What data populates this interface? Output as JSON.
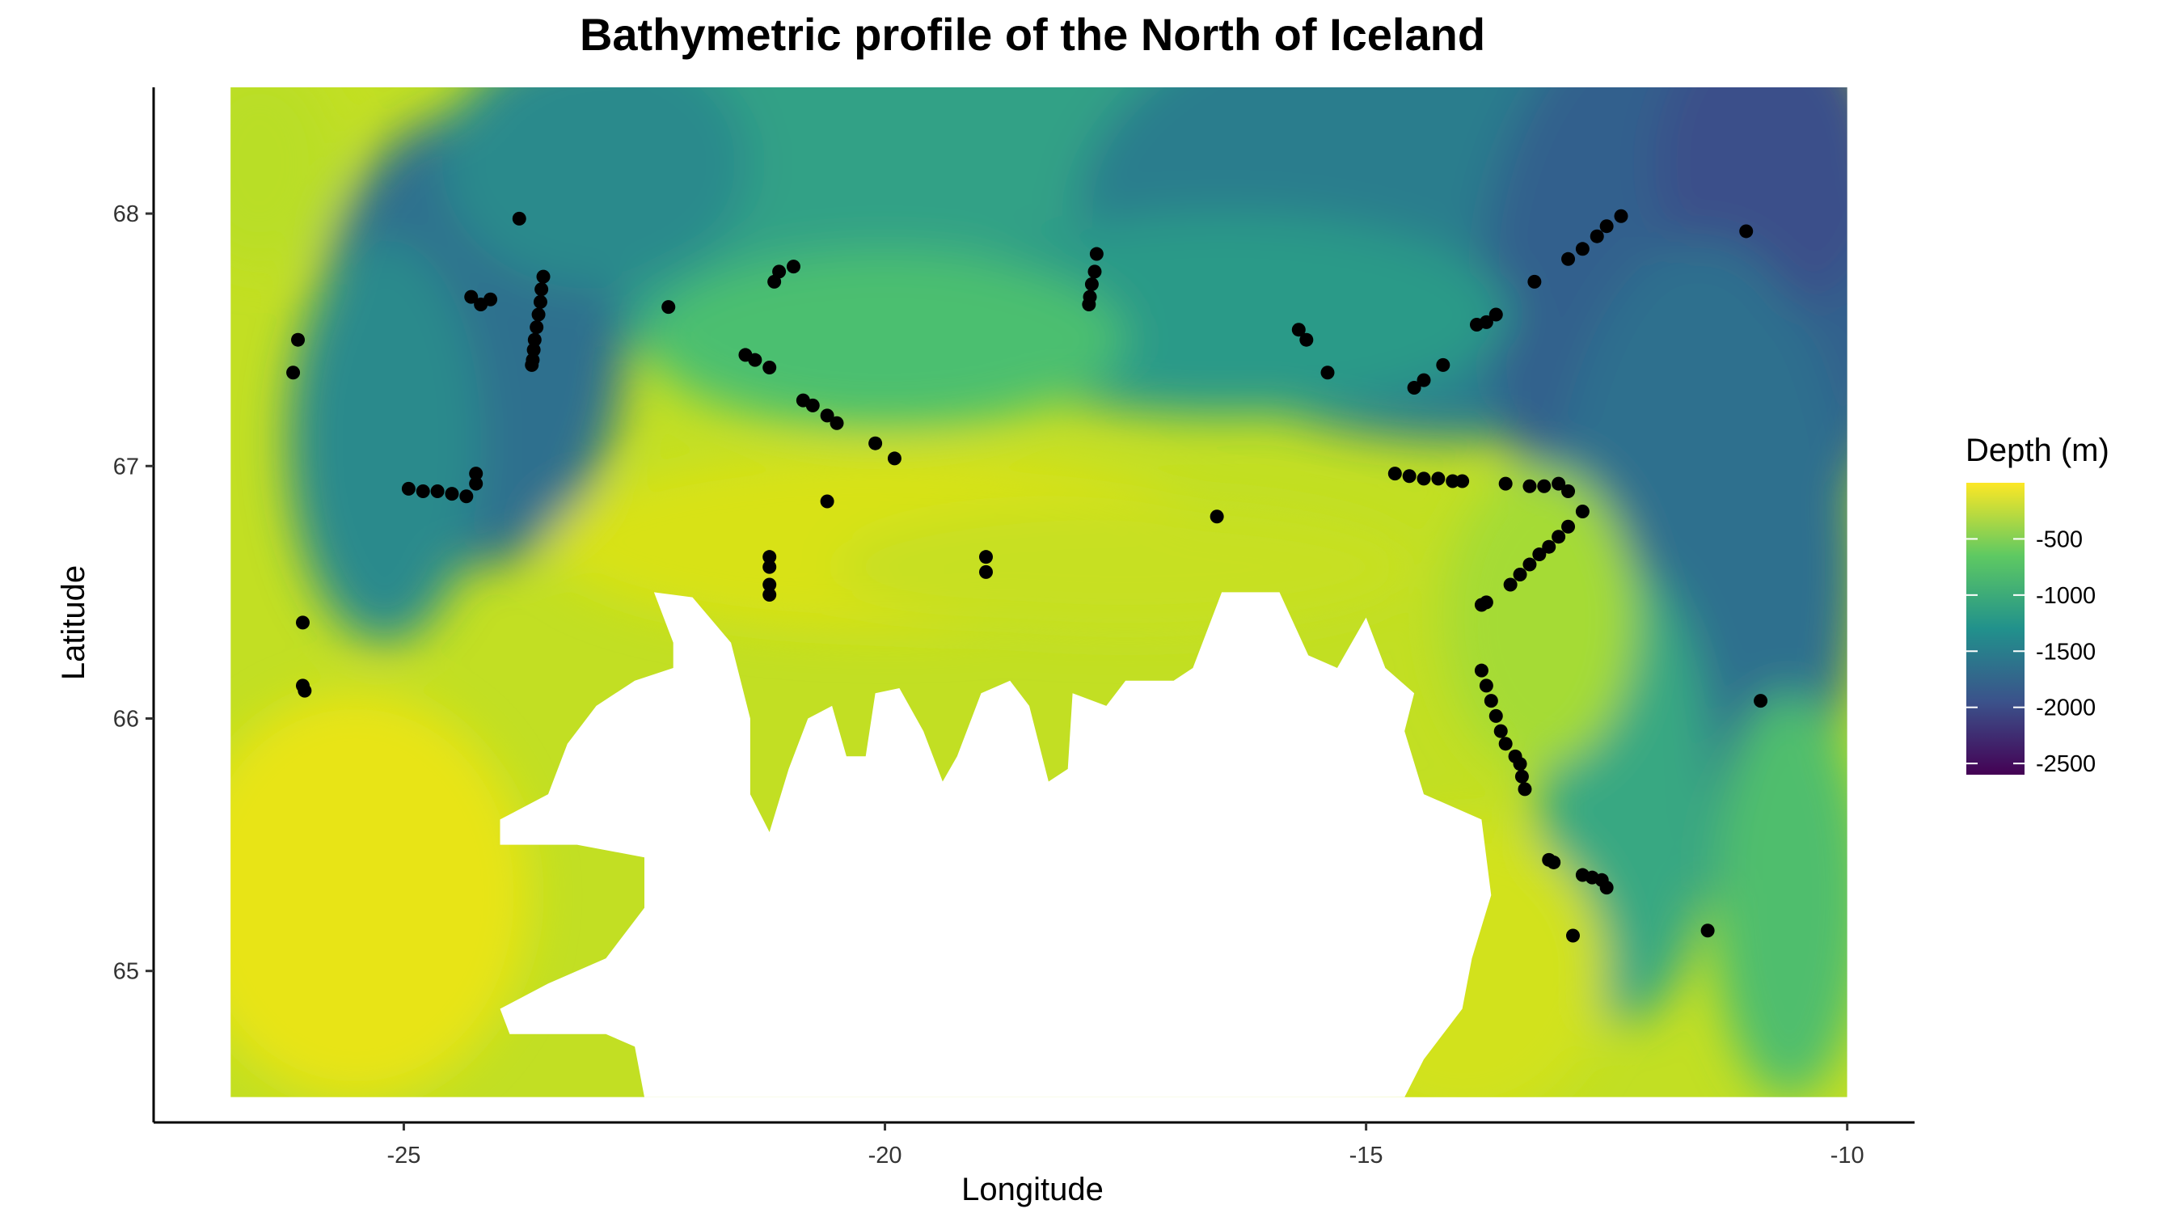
{
  "chart_data": {
    "type": "heatmap",
    "title": "Bathymetric profile of the North of Iceland",
    "xlabel": "Longitude",
    "ylabel": "Latitude",
    "xlim": [
      -27.6,
      -9.3
    ],
    "ylim": [
      64.4,
      68.5
    ],
    "xticks": [
      -25,
      -20,
      -15,
      -10
    ],
    "yticks": [
      65,
      66,
      67,
      68
    ],
    "grid": false,
    "legend": {
      "title": "Depth (m)",
      "placement": "right",
      "breaks": [
        -500,
        -1000,
        -1500,
        -2000,
        -2500
      ],
      "range": [
        -2600,
        0
      ],
      "palette": [
        "#440154",
        "#3b528b",
        "#21918c",
        "#5ec962",
        "#fde725"
      ]
    },
    "raster_extent": {
      "lon": [
        -26.8,
        -10.0
      ],
      "lat": [
        64.5,
        68.5
      ]
    },
    "points": [
      {
        "lon": -26.1,
        "lat": 67.5
      },
      {
        "lon": -26.15,
        "lat": 67.37
      },
      {
        "lon": -26.05,
        "lat": 66.38
      },
      {
        "lon": -26.05,
        "lat": 66.13
      },
      {
        "lon": -26.03,
        "lat": 66.11
      },
      {
        "lon": -23.8,
        "lat": 67.98
      },
      {
        "lon": -24.3,
        "lat": 67.67
      },
      {
        "lon": -24.2,
        "lat": 67.64
      },
      {
        "lon": -24.1,
        "lat": 67.66
      },
      {
        "lon": -23.55,
        "lat": 67.75
      },
      {
        "lon": -23.57,
        "lat": 67.7
      },
      {
        "lon": -23.58,
        "lat": 67.65
      },
      {
        "lon": -23.6,
        "lat": 67.6
      },
      {
        "lon": -23.62,
        "lat": 67.55
      },
      {
        "lon": -23.64,
        "lat": 67.5
      },
      {
        "lon": -23.65,
        "lat": 67.46
      },
      {
        "lon": -23.66,
        "lat": 67.42
      },
      {
        "lon": -23.67,
        "lat": 67.4
      },
      {
        "lon": -24.95,
        "lat": 66.91
      },
      {
        "lon": -24.8,
        "lat": 66.9
      },
      {
        "lon": -24.65,
        "lat": 66.9
      },
      {
        "lon": -24.5,
        "lat": 66.89
      },
      {
        "lon": -24.35,
        "lat": 66.88
      },
      {
        "lon": -24.25,
        "lat": 66.93
      },
      {
        "lon": -24.25,
        "lat": 66.97
      },
      {
        "lon": -22.25,
        "lat": 67.63
      },
      {
        "lon": -21.15,
        "lat": 67.73
      },
      {
        "lon": -21.1,
        "lat": 67.77
      },
      {
        "lon": -20.95,
        "lat": 67.79
      },
      {
        "lon": -21.45,
        "lat": 67.44
      },
      {
        "lon": -21.35,
        "lat": 67.42
      },
      {
        "lon": -21.2,
        "lat": 67.39
      },
      {
        "lon": -20.85,
        "lat": 67.26
      },
      {
        "lon": -20.75,
        "lat": 67.24
      },
      {
        "lon": -20.6,
        "lat": 67.2
      },
      {
        "lon": -20.5,
        "lat": 67.17
      },
      {
        "lon": -20.1,
        "lat": 67.09
      },
      {
        "lon": -19.9,
        "lat": 67.03
      },
      {
        "lon": -20.6,
        "lat": 66.86
      },
      {
        "lon": -21.2,
        "lat": 66.64
      },
      {
        "lon": -21.2,
        "lat": 66.6
      },
      {
        "lon": -21.2,
        "lat": 66.53
      },
      {
        "lon": -21.2,
        "lat": 66.49
      },
      {
        "lon": -18.95,
        "lat": 66.64
      },
      {
        "lon": -18.95,
        "lat": 66.58
      },
      {
        "lon": -17.8,
        "lat": 67.84
      },
      {
        "lon": -17.82,
        "lat": 67.77
      },
      {
        "lon": -17.85,
        "lat": 67.72
      },
      {
        "lon": -17.87,
        "lat": 67.67
      },
      {
        "lon": -17.88,
        "lat": 67.64
      },
      {
        "lon": -16.55,
        "lat": 66.8
      },
      {
        "lon": -15.7,
        "lat": 67.54
      },
      {
        "lon": -15.62,
        "lat": 67.5
      },
      {
        "lon": -15.4,
        "lat": 67.37
      },
      {
        "lon": -14.5,
        "lat": 67.31
      },
      {
        "lon": -14.4,
        "lat": 67.34
      },
      {
        "lon": -14.2,
        "lat": 67.4
      },
      {
        "lon": -14.7,
        "lat": 66.97
      },
      {
        "lon": -14.55,
        "lat": 66.96
      },
      {
        "lon": -14.4,
        "lat": 66.95
      },
      {
        "lon": -14.25,
        "lat": 66.95
      },
      {
        "lon": -14.1,
        "lat": 66.94
      },
      {
        "lon": -14.0,
        "lat": 66.94
      },
      {
        "lon": -13.85,
        "lat": 67.56
      },
      {
        "lon": -13.75,
        "lat": 67.57
      },
      {
        "lon": -13.65,
        "lat": 67.6
      },
      {
        "lon": -13.25,
        "lat": 67.73
      },
      {
        "lon": -12.9,
        "lat": 67.82
      },
      {
        "lon": -12.75,
        "lat": 67.86
      },
      {
        "lon": -12.6,
        "lat": 67.91
      },
      {
        "lon": -12.5,
        "lat": 67.95
      },
      {
        "lon": -12.35,
        "lat": 67.99
      },
      {
        "lon": -11.05,
        "lat": 67.93
      },
      {
        "lon": -13.55,
        "lat": 66.93
      },
      {
        "lon": -13.3,
        "lat": 66.92
      },
      {
        "lon": -13.15,
        "lat": 66.92
      },
      {
        "lon": -13.0,
        "lat": 66.93
      },
      {
        "lon": -12.9,
        "lat": 66.9
      },
      {
        "lon": -12.75,
        "lat": 66.82
      },
      {
        "lon": -12.9,
        "lat": 66.76
      },
      {
        "lon": -13.0,
        "lat": 66.72
      },
      {
        "lon": -13.1,
        "lat": 66.68
      },
      {
        "lon": -13.2,
        "lat": 66.65
      },
      {
        "lon": -13.3,
        "lat": 66.61
      },
      {
        "lon": -13.4,
        "lat": 66.57
      },
      {
        "lon": -13.5,
        "lat": 66.53
      },
      {
        "lon": -13.75,
        "lat": 66.46
      },
      {
        "lon": -13.8,
        "lat": 66.45
      },
      {
        "lon": -13.8,
        "lat": 66.19
      },
      {
        "lon": -13.75,
        "lat": 66.13
      },
      {
        "lon": -13.7,
        "lat": 66.07
      },
      {
        "lon": -13.65,
        "lat": 66.01
      },
      {
        "lon": -13.6,
        "lat": 65.95
      },
      {
        "lon": -13.55,
        "lat": 65.9
      },
      {
        "lon": -13.45,
        "lat": 65.85
      },
      {
        "lon": -13.4,
        "lat": 65.82
      },
      {
        "lon": -13.38,
        "lat": 65.77
      },
      {
        "lon": -13.35,
        "lat": 65.72
      },
      {
        "lon": -13.1,
        "lat": 65.44
      },
      {
        "lon": -13.05,
        "lat": 65.43
      },
      {
        "lon": -12.75,
        "lat": 65.38
      },
      {
        "lon": -12.65,
        "lat": 65.37
      },
      {
        "lon": -12.55,
        "lat": 65.36
      },
      {
        "lon": -12.5,
        "lat": 65.33
      },
      {
        "lon": -12.85,
        "lat": 65.14
      },
      {
        "lon": -11.45,
        "lat": 65.16
      },
      {
        "lon": -10.9,
        "lat": 66.07
      }
    ]
  }
}
